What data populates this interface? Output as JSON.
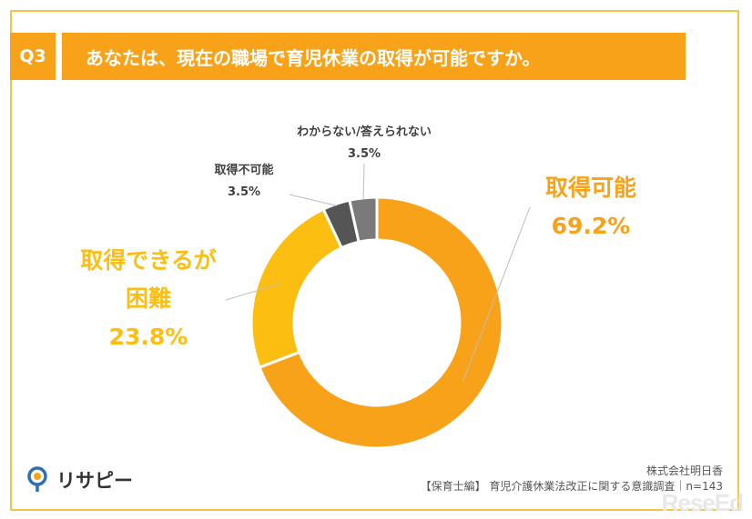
{
  "header": {
    "question_no": "Q3",
    "question_text": "あなたは、現在の職場で育児休業の取得が可能ですか。"
  },
  "chart_data": {
    "type": "donut",
    "series": [
      {
        "label": "取得可能",
        "value": 69.2,
        "value_text": "69.2%",
        "color": "#f8a21a"
      },
      {
        "label": "取得できるが困難",
        "label_line1": "取得できるが",
        "label_line2": "困難",
        "value": 23.8,
        "value_text": "23.8%",
        "color": "#fdbe12"
      },
      {
        "label": "取得不可能",
        "value": 3.5,
        "value_text": "3.5%",
        "color": "#555555"
      },
      {
        "label": "わからない/答えられない",
        "value": 3.5,
        "value_text": "3.5%",
        "color": "#7a7a7a"
      }
    ]
  },
  "footer": {
    "company": "株式会社明日香",
    "survey": "【保育士編】 育児介護休業法改正に関する意識調査｜n=143"
  },
  "logo": {
    "text": "リサピー"
  },
  "watermark": {
    "text": "ReseEd"
  }
}
